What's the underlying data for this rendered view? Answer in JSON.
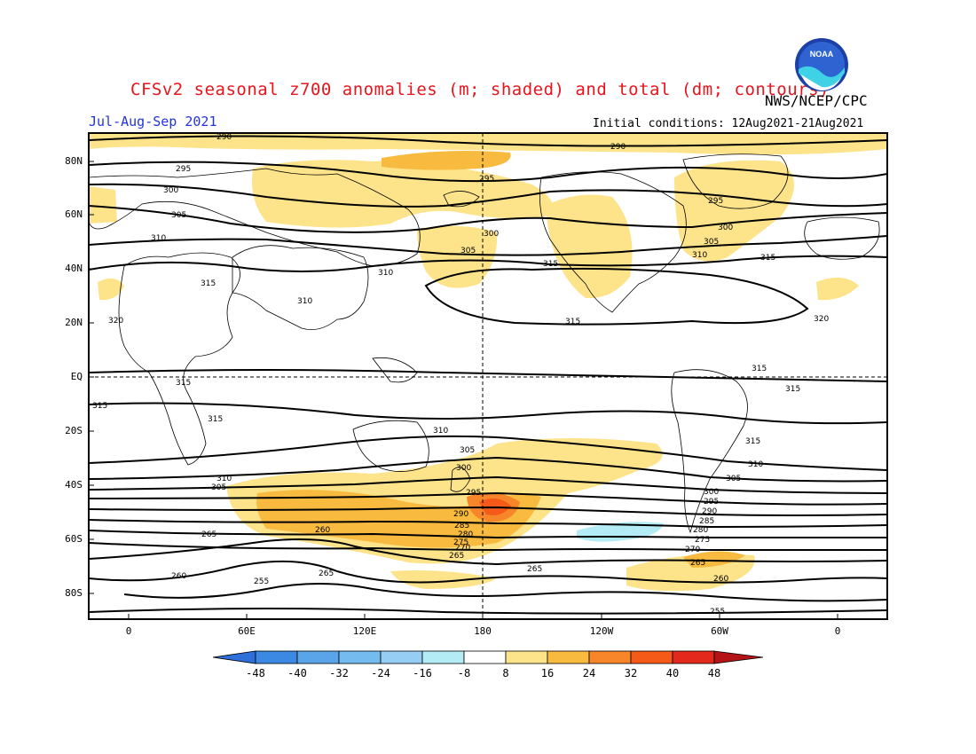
{
  "title": "CFSv2 seasonal z700 anomalies (m; shaded) and total (dm; contours)",
  "agency": "NWS/NCEP/CPC",
  "season": "Jul-Aug-Sep 2021",
  "initial_conditions": "Initial conditions: 12Aug2021-21Aug2021",
  "logo": {
    "text": "NOAA",
    "icon": "noaa-logo"
  },
  "lat_labels": [
    "80N",
    "60N",
    "40N",
    "20N",
    "EQ",
    "20S",
    "40S",
    "60S",
    "80S"
  ],
  "lon_labels": [
    "0",
    "60E",
    "120E",
    "180",
    "120W",
    "60W",
    "0"
  ],
  "colorbar": {
    "ticks": [
      "-48",
      "-40",
      "-32",
      "-24",
      "-16",
      "-8",
      "8",
      "16",
      "24",
      "32",
      "40",
      "48"
    ],
    "colors": [
      "#2e6fd9",
      "#3c89e3",
      "#5aa5ea",
      "#96cdf4",
      "#b4ecf6",
      "#ffffff",
      "#fde38a",
      "#f9bb3f",
      "#f7862a",
      "#f55a18",
      "#e2291c",
      "#b51416"
    ]
  },
  "contour_labels": [
    "290",
    "295",
    "300",
    "305",
    "310",
    "315",
    "320",
    "285",
    "280",
    "275",
    "270",
    "265",
    "260",
    "255"
  ],
  "colors": {
    "title": "#e8141c",
    "season": "#2233dd",
    "positive_light": "#fde38a",
    "positive_mid": "#f9bb3f",
    "positive_strong": "#f55a18",
    "negative_light": "#b4ecf6"
  }
}
